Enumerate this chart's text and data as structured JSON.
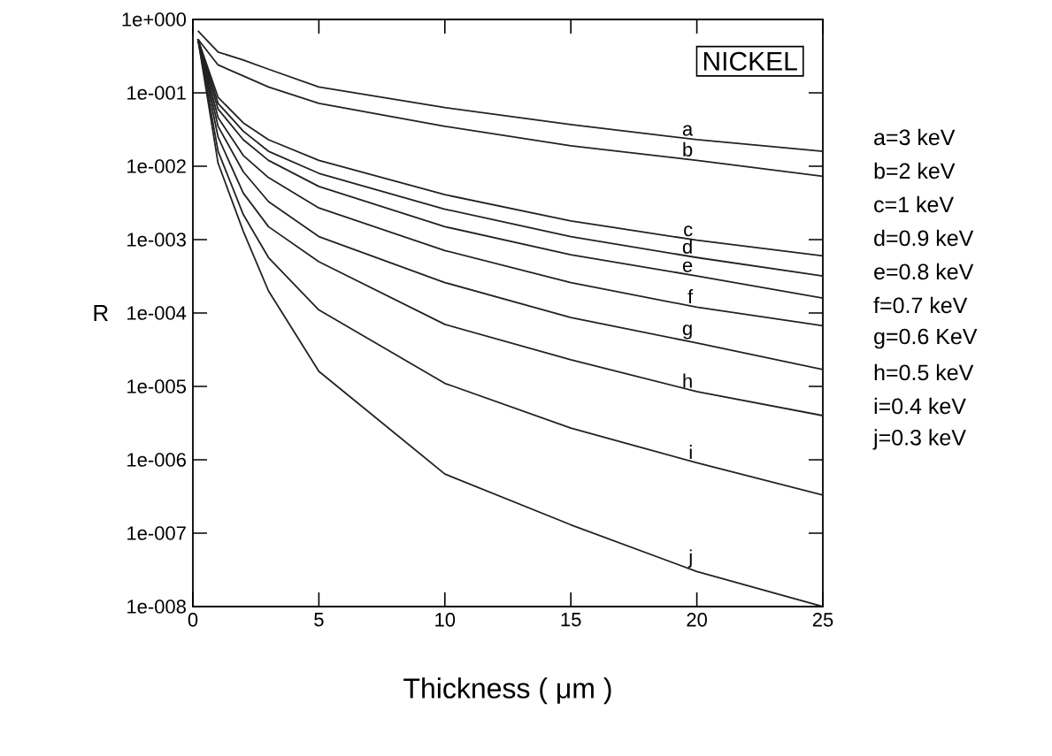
{
  "chart_data": {
    "type": "line",
    "xlabel": "Thickness ( μm )",
    "ylabel": "R",
    "x": [
      0.2,
      1,
      2,
      3,
      5,
      10,
      15,
      20,
      25
    ],
    "series": [
      {
        "name": "a",
        "color": "#222222",
        "values": [
          0.7,
          0.36,
          0.28,
          0.21,
          0.12,
          0.063,
          0.037,
          0.023,
          0.016
        ]
      },
      {
        "name": "b",
        "color": "#222222",
        "values": [
          0.54,
          0.24,
          0.17,
          0.12,
          0.072,
          0.035,
          0.019,
          0.012,
          0.0073
        ]
      },
      {
        "name": "c",
        "color": "#222222",
        "values": [
          0.54,
          0.087,
          0.039,
          0.023,
          0.012,
          0.0041,
          0.0018,
          0.00098,
          0.0006
        ]
      },
      {
        "name": "d",
        "color": "#222222",
        "values": [
          0.54,
          0.072,
          0.03,
          0.016,
          0.008,
          0.0026,
          0.0011,
          0.00057,
          0.00032
        ]
      },
      {
        "name": "e",
        "color": "#222222",
        "values": [
          0.54,
          0.06,
          0.023,
          0.012,
          0.0053,
          0.0015,
          0.00062,
          0.00032,
          0.00016
        ]
      },
      {
        "name": "f",
        "color": "#222222",
        "values": [
          0.54,
          0.046,
          0.014,
          0.007,
          0.0027,
          0.00071,
          0.00026,
          0.00012,
          6.7e-05
        ]
      },
      {
        "name": "g",
        "color": "#222222",
        "values": [
          0.54,
          0.035,
          0.0084,
          0.0033,
          0.0011,
          0.00026,
          8.7e-05,
          3.9e-05,
          1.7e-05
        ]
      },
      {
        "name": "h",
        "color": "#222222",
        "values": [
          0.54,
          0.025,
          0.0043,
          0.0015,
          0.0005,
          7e-05,
          2.3e-05,
          8.5e-06,
          4e-06
        ]
      },
      {
        "name": "i",
        "color": "#222222",
        "values": [
          0.54,
          0.016,
          0.0022,
          0.00057,
          0.00011,
          1.1e-05,
          2.7e-06,
          9.1e-07,
          3.3e-07
        ]
      },
      {
        "name": "j",
        "color": "#222222",
        "values": [
          0.54,
          0.011,
          0.0013,
          0.0002,
          1.6e-05,
          6.4e-07,
          1.3e-07,
          3e-08,
          1e-08
        ]
      }
    ],
    "log": "y",
    "grid": false,
    "legend": false,
    "marker": "none",
    "line_style": "solid",
    "xlim": [
      0,
      25
    ],
    "xticks": [
      0,
      5,
      10,
      15,
      20,
      25
    ],
    "ylim": [
      1e-08,
      1
    ],
    "yticks": [
      {
        "value": 1,
        "label": "1e+000"
      },
      {
        "value": 0.1,
        "label": "1e-001"
      },
      {
        "value": 0.01,
        "label": "1e-002"
      },
      {
        "value": 0.001,
        "label": "1e-003"
      },
      {
        "value": 0.0001,
        "label": "1e-004"
      },
      {
        "value": 1e-05,
        "label": "1e-005"
      },
      {
        "value": 1e-06,
        "label": "1e-006"
      },
      {
        "value": 1e-07,
        "label": "1e-007"
      },
      {
        "value": 1e-08,
        "label": "1e-008"
      }
    ],
    "annotations": [
      "NICKEL",
      "a=3 keV",
      "b=2 keV",
      "c=1 keV",
      "d=0.9 keV",
      "e=0.8 keV",
      "f=0.7 keV",
      "g=0.6 KeV",
      "h=0.5 keV",
      "i=0.4 keV",
      "j=0.3 keV"
    ]
  }
}
